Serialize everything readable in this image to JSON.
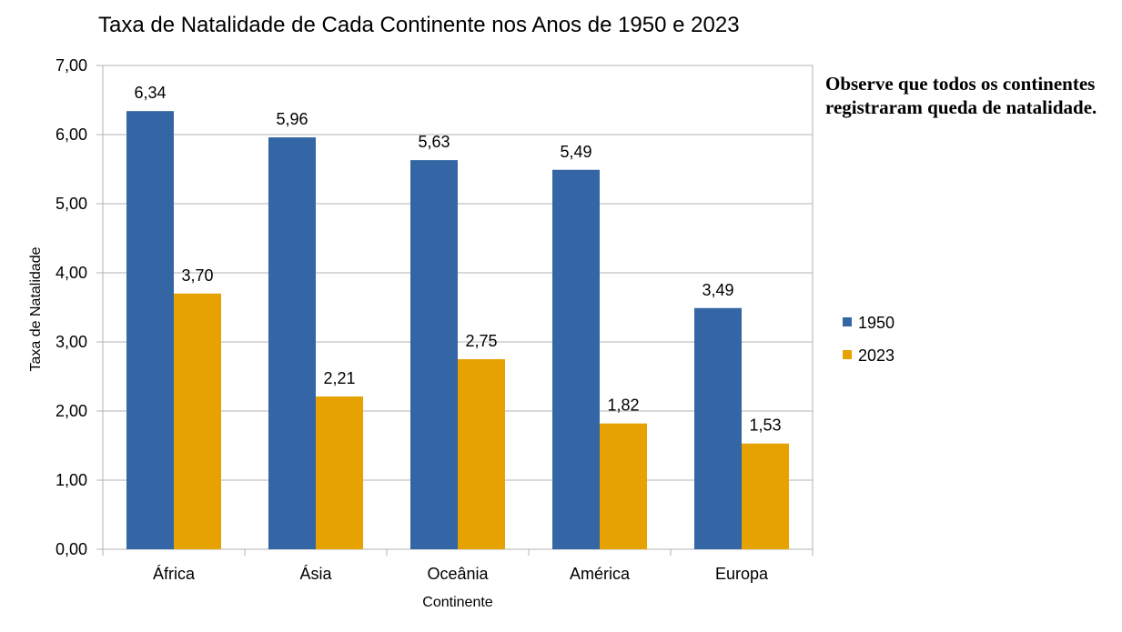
{
  "chart_data": {
    "type": "bar",
    "title": "Taxa de Natalidade de Cada Continente nos Anos de 1950 e 2023",
    "xlabel": "Continente",
    "ylabel": "Taxa de Natalidade",
    "categories": [
      "África",
      "Ásia",
      "Oceânia",
      "América",
      "Europa"
    ],
    "series": [
      {
        "name": "1950",
        "values": [
          6.34,
          5.96,
          5.63,
          5.49,
          3.49
        ],
        "labels": [
          "6,34",
          "5,96",
          "5,63",
          "5,49",
          "3,49"
        ],
        "color": "#3465a4"
      },
      {
        "name": "2023",
        "values": [
          3.7,
          2.21,
          2.75,
          1.82,
          1.53
        ],
        "labels": [
          "3,70",
          "2,21",
          "2,75",
          "1,82",
          "1,53"
        ],
        "color": "#e6a200"
      }
    ],
    "ylim": [
      0,
      7
    ],
    "yticks": [
      0,
      1,
      2,
      3,
      4,
      5,
      6,
      7
    ],
    "ytick_labels": [
      "0,00",
      "1,00",
      "2,00",
      "3,00",
      "4,00",
      "5,00",
      "6,00",
      "7,00"
    ],
    "grid": true,
    "legend_position": "right"
  },
  "annotation": "Observe que todos os continentes registraram queda de natalidade."
}
